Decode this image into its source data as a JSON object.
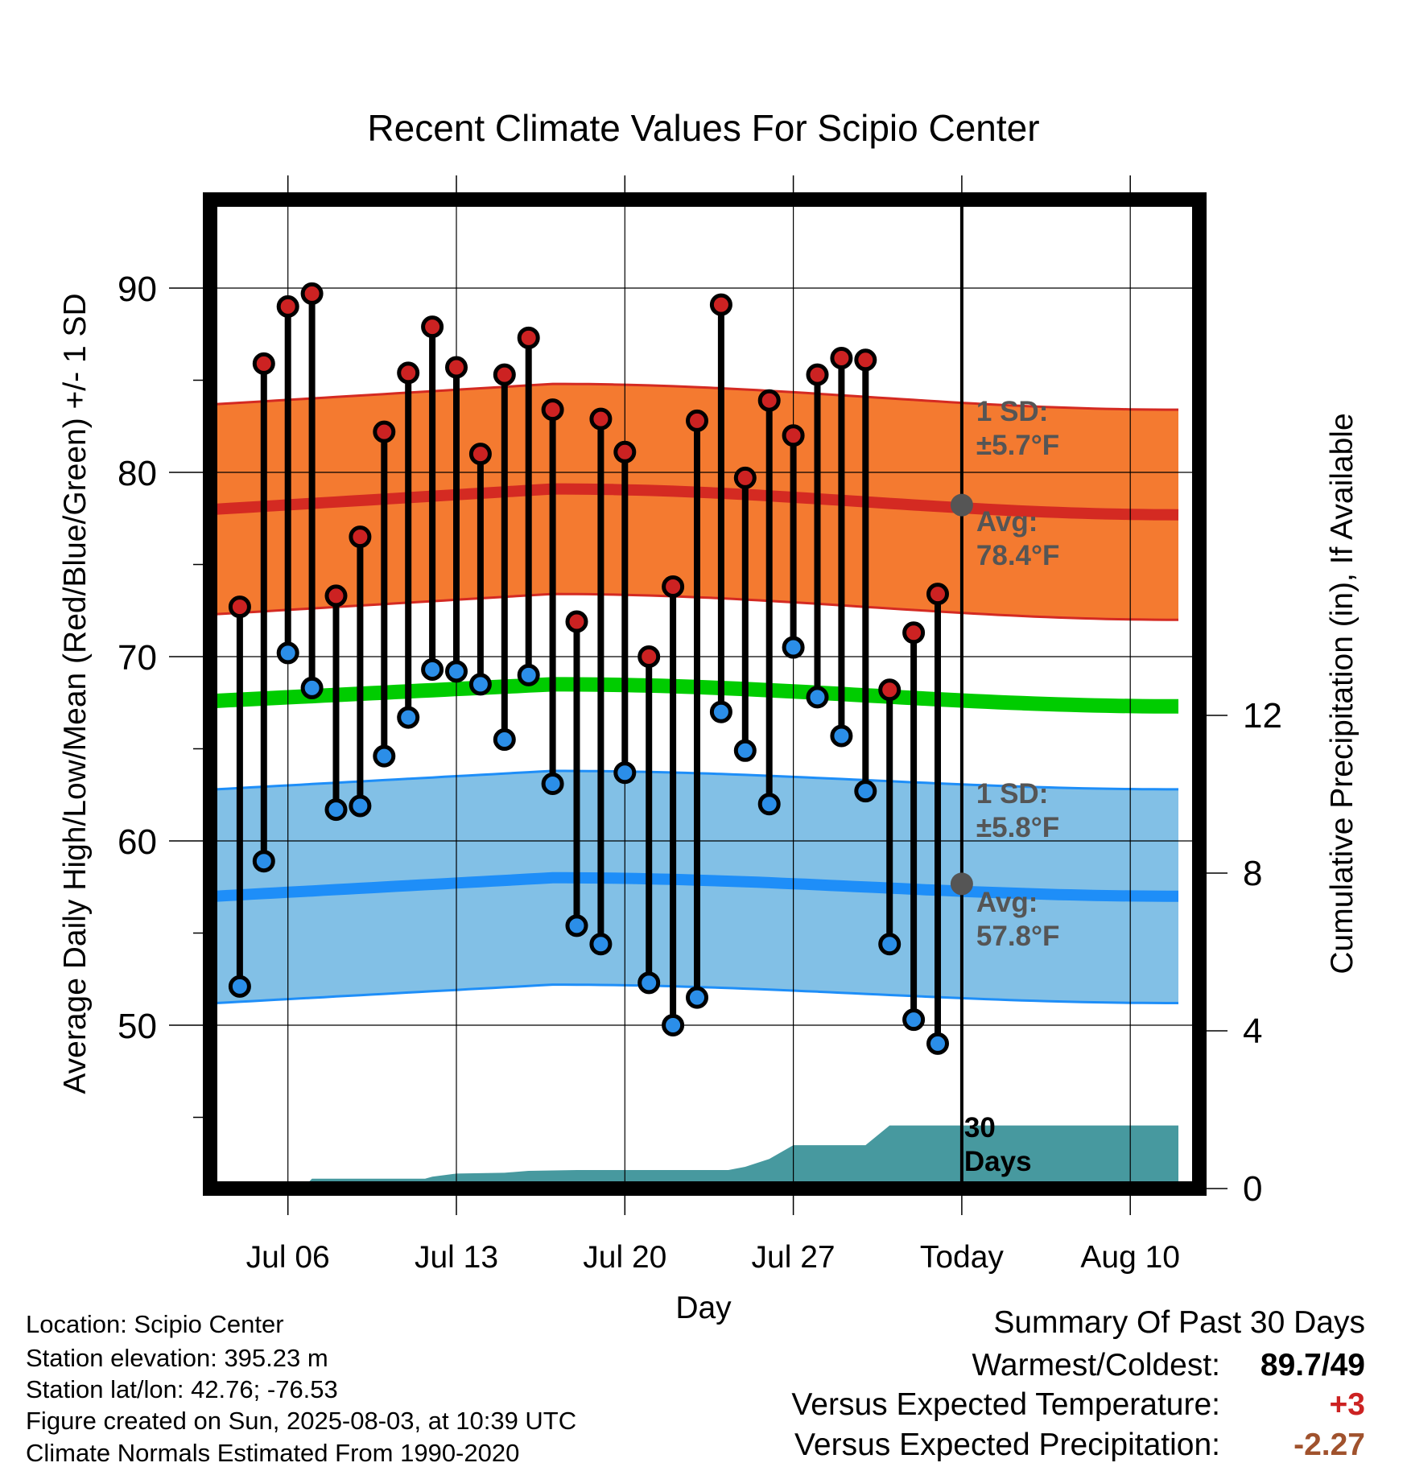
{
  "chart_data": {
    "type": "line",
    "title": "Recent Climate Values For Scipio Center",
    "xlabel": "Day",
    "ylabel_left": "Average Daily High/Low/Mean (Red/Blue/Green) +/- 1 SD",
    "ylabel_right": "Cumulative Precipitation (in), If Available",
    "ylim_left": [
      40,
      95
    ],
    "ylim_right": [
      0,
      25
    ],
    "left_ticks": [
      "50",
      "60",
      "70",
      "80",
      "90"
    ],
    "right_ticks": [
      "0",
      "4",
      "8",
      "12"
    ],
    "x_ticks": [
      "Jul 06",
      "Jul 13",
      "Jul 20",
      "Jul 27",
      "Today",
      "Aug 10"
    ],
    "x_range": [
      "2025-07-03",
      "2025-08-12"
    ],
    "today": "2025-08-03",
    "days": [
      "2025-07-04",
      "2025-07-05",
      "2025-07-06",
      "2025-07-07",
      "2025-07-08",
      "2025-07-09",
      "2025-07-10",
      "2025-07-11",
      "2025-07-12",
      "2025-07-13",
      "2025-07-14",
      "2025-07-15",
      "2025-07-16",
      "2025-07-17",
      "2025-07-18",
      "2025-07-19",
      "2025-07-20",
      "2025-07-21",
      "2025-07-22",
      "2025-07-23",
      "2025-07-24",
      "2025-07-25",
      "2025-07-26",
      "2025-07-27",
      "2025-07-28",
      "2025-07-29",
      "2025-07-30",
      "2025-07-31",
      "2025-08-01",
      "2025-08-02"
    ],
    "highs": [
      72.7,
      85.9,
      89.0,
      89.7,
      73.3,
      76.5,
      82.2,
      85.4,
      87.9,
      85.7,
      81.0,
      85.3,
      87.3,
      83.4,
      71.9,
      82.9,
      81.1,
      70.0,
      73.8,
      82.8,
      89.1,
      79.7,
      83.9,
      82.0,
      85.3,
      86.2,
      86.1,
      68.2,
      71.3,
      73.4
    ],
    "lows": [
      52.1,
      58.9,
      70.2,
      68.3,
      61.7,
      61.9,
      64.6,
      66.7,
      69.3,
      69.2,
      68.5,
      65.5,
      69.0,
      63.1,
      55.4,
      54.4,
      63.7,
      52.3,
      50.0,
      51.5,
      67.0,
      64.9,
      62.0,
      70.5,
      67.8,
      65.7,
      62.7,
      54.4,
      50.3,
      49.0
    ],
    "normals": {
      "x": [
        "2025-07-03",
        "2025-07-17",
        "2025-08-12"
      ],
      "high_mean": [
        78.0,
        79.1,
        77.7
      ],
      "high_sd": 5.7,
      "mean": [
        67.6,
        68.5,
        67.3
      ],
      "low_mean": [
        57.0,
        58.0,
        57.0
      ],
      "low_sd": 5.8
    },
    "precip_cumulative": {
      "x": [
        "2025-07-03",
        "2025-07-06.6",
        "2025-07-07",
        "2025-07-11.7",
        "2025-07-12",
        "2025-07-13",
        "2025-07-15",
        "2025-07-16",
        "2025-07-18",
        "2025-07-24.3",
        "2025-07-25",
        "2025-07-26",
        "2025-07-27",
        "2025-07-30",
        "2025-07-31",
        "2025-08-12"
      ],
      "values": [
        0.0,
        0.0,
        0.25,
        0.25,
        0.3,
        0.38,
        0.4,
        0.45,
        0.47,
        0.47,
        0.55,
        0.75,
        1.1,
        1.1,
        1.6,
        1.6
      ]
    },
    "annotations": {
      "high_sd_label": "1 SD:",
      "high_sd_value": "±5.7°F",
      "high_avg_label": "Avg:",
      "high_avg_value": "78.4°F",
      "low_sd_label": "1 SD:",
      "low_sd_value": "±5.8°F",
      "low_avg_label": "Avg:",
      "low_avg_value": "57.8°F",
      "days_label": "30 Days"
    },
    "colors": {
      "high_band": "#f47a30",
      "high_line": "#d42a22",
      "mean_line": "#00cc00",
      "low_band": "#82c0e6",
      "low_line": "#1e8ef8",
      "precip": "#47999f",
      "high_dot": "#cc2222",
      "low_dot": "#2b8ee8",
      "annotation": "#555555"
    }
  },
  "footer": {
    "location": "Location: Scipio Center",
    "elevation": "Station elevation: 395.23 m",
    "latlon": "Station lat/lon: 42.76; -76.53",
    "created": "Figure created on Sun, 2025-08-03, at 10:39 UTC",
    "normals": "Climate Normals Estimated From 1990-2020"
  },
  "summary": {
    "title": "Summary Of Past 30 Days",
    "warmest_label": "Warmest/Coldest:",
    "warmest_value": "89.7/49",
    "temp_label": "Versus Expected Temperature:",
    "temp_value": "+3",
    "temp_color": "#cc2222",
    "precip_label": "Versus Expected Precipitation:",
    "precip_value": "-2.27",
    "precip_color": "#a0522d"
  }
}
